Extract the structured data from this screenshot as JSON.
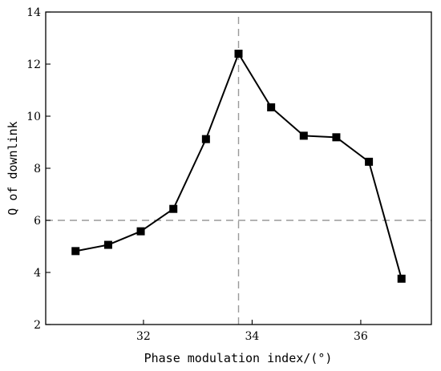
{
  "chart_data": {
    "type": "line",
    "xlabel": "Phase modulation index/(°)",
    "ylabel": "Q of downlink",
    "xlim": [
      30.2,
      37.3
    ],
    "ylim": [
      2,
      14
    ],
    "xticks": [
      32,
      34,
      36
    ],
    "yticks": [
      2,
      4,
      6,
      8,
      10,
      12,
      14
    ],
    "xtick_labels": [
      "32",
      "34",
      "36"
    ],
    "ytick_labels": [
      "2",
      "4",
      "6",
      "8",
      "10",
      "12",
      "14"
    ],
    "grid": false,
    "series": [
      {
        "x": [
          30.75,
          31.35,
          31.95,
          32.55,
          33.15,
          33.75,
          34.35,
          34.95,
          35.55,
          36.15,
          36.75
        ],
        "y": [
          4.82,
          5.06,
          5.58,
          6.44,
          9.12,
          12.4,
          10.34,
          9.25,
          9.19,
          8.25,
          3.76
        ],
        "color": "#000000",
        "marker": "square"
      }
    ],
    "reference_lines": [
      {
        "orientation": "horizontal",
        "value": 6,
        "style": "dashed",
        "color": "#9a9a9a"
      },
      {
        "orientation": "vertical",
        "value": 33.75,
        "style": "dashed",
        "color": "#9a9a9a"
      }
    ]
  }
}
